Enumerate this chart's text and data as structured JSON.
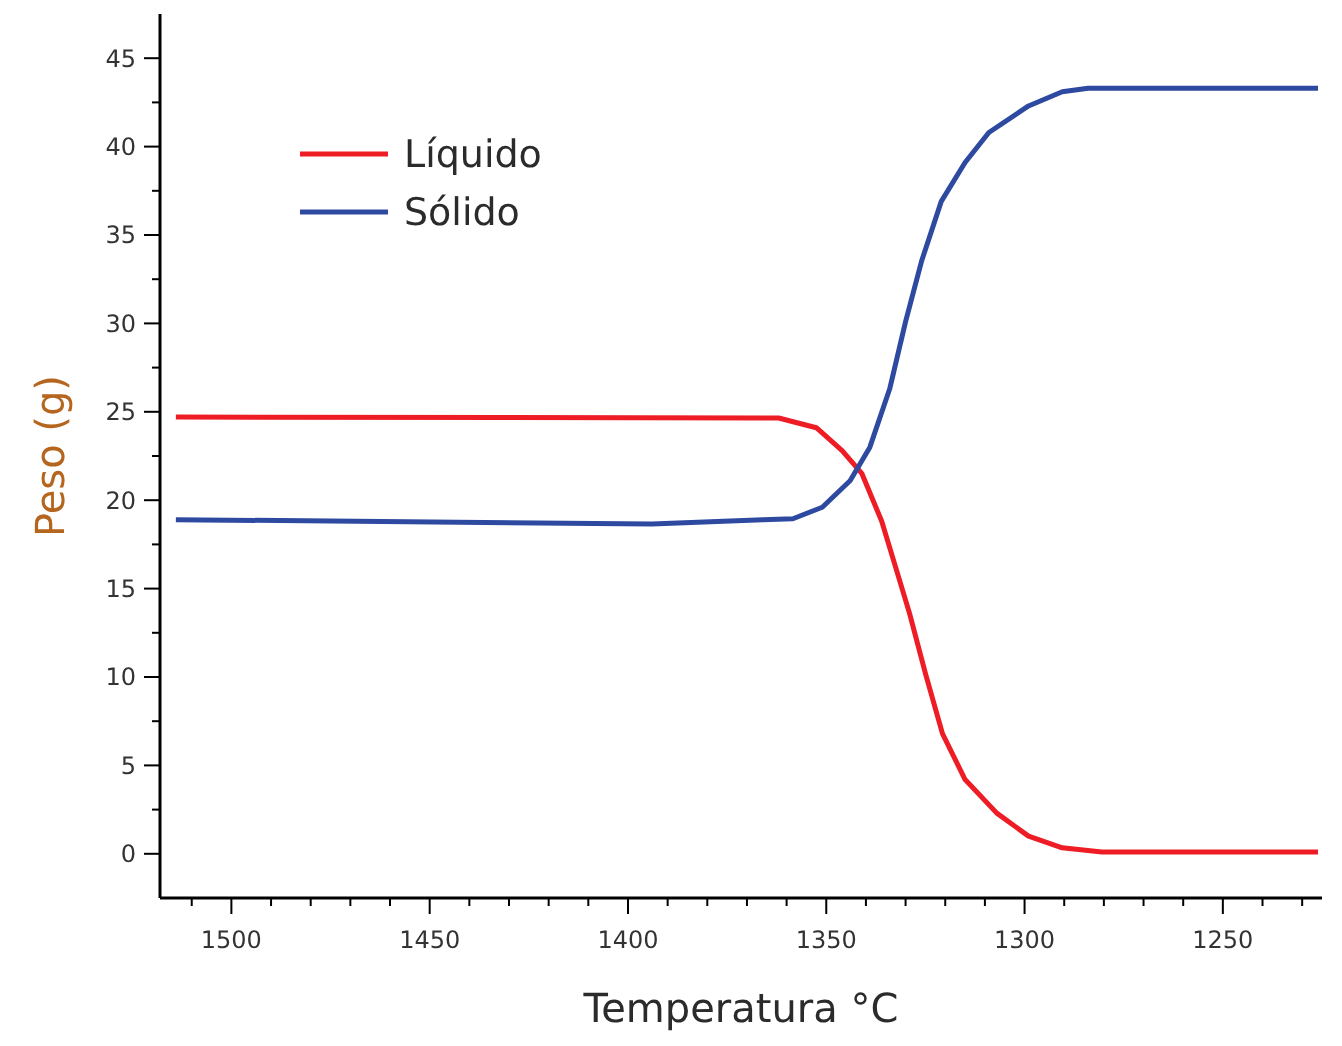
{
  "chart_data": {
    "type": "line",
    "xlabel": "Temperatura °C",
    "ylabel": "Peso (g)",
    "xlim": [
      1518,
      1225
    ],
    "ylim": [
      -2.5,
      47.5
    ],
    "xticks": [
      {
        "value": 1230,
        "label": null
      },
      {
        "value": 1240,
        "label": null
      },
      1250,
      {
        "value": 1260,
        "label": null
      },
      {
        "value": 1270,
        "label": null
      },
      {
        "value": 1280,
        "label": null
      },
      {
        "value": 1290,
        "label": null
      },
      1300,
      {
        "value": 1310,
        "label": null
      },
      {
        "value": 1320,
        "label": null
      },
      {
        "value": 1330,
        "label": null
      },
      {
        "value": 1340,
        "label": null
      },
      1350,
      {
        "value": 1360,
        "label": null
      },
      {
        "value": 1370,
        "label": null
      },
      {
        "value": 1380,
        "label": null
      },
      {
        "value": 1390,
        "label": null
      },
      1400,
      {
        "value": 1410,
        "label": null
      },
      {
        "value": 1420,
        "label": null
      },
      {
        "value": 1430,
        "label": null
      },
      {
        "value": 1440,
        "label": null
      },
      1450,
      {
        "value": 1460,
        "label": null
      },
      {
        "value": 1470,
        "label": null
      },
      {
        "value": 1480,
        "label": null
      },
      {
        "value": 1490,
        "label": null
      },
      1500,
      {
        "value": 1510,
        "label": null
      }
    ],
    "yticks": [
      0,
      {
        "value": 2.5,
        "label": null
      },
      5,
      {
        "value": 7.5,
        "label": null
      },
      10,
      {
        "value": 12.5,
        "label": null
      },
      15,
      {
        "value": 17.5,
        "label": null
      },
      20,
      {
        "value": 22.5,
        "label": null
      },
      25,
      {
        "value": 27.5,
        "label": null
      },
      30,
      {
        "value": 32.5,
        "label": null
      },
      35,
      {
        "value": 37.5,
        "label": null
      },
      40,
      {
        "value": 42.5,
        "label": null
      },
      45
    ],
    "grid": false,
    "legend": "top left",
    "line_style": "solid",
    "marker": "none",
    "series": [
      {
        "name": "Líquido",
        "color": "#ee1c25",
        "x": [
          1514,
          1362,
          1352.5,
          1346,
          1341,
          1336,
          1332.5,
          1329,
          1325,
          1320.7,
          1315,
          1307,
          1299,
          1290.5,
          1280.5,
          1226
        ],
        "values": [
          24.7,
          24.65,
          24.1,
          22.8,
          21.5,
          18.8,
          16.2,
          13.6,
          10.2,
          6.8,
          4.2,
          2.3,
          1.0,
          0.34,
          0.1,
          0.1
        ]
      },
      {
        "name": "Sólido",
        "color": "#2e4aa0",
        "x": [
          1514,
          1394,
          1366,
          1358.4,
          1351,
          1344,
          1339,
          1334,
          1330,
          1326,
          1321,
          1315,
          1309,
          1299,
          1290.5,
          1284,
          1226
        ],
        "values": [
          18.9,
          18.65,
          18.9,
          18.95,
          19.6,
          21.1,
          23.0,
          26.3,
          30.1,
          33.5,
          36.9,
          39.1,
          40.8,
          42.3,
          43.1,
          43.3,
          43.3
        ]
      }
    ]
  }
}
